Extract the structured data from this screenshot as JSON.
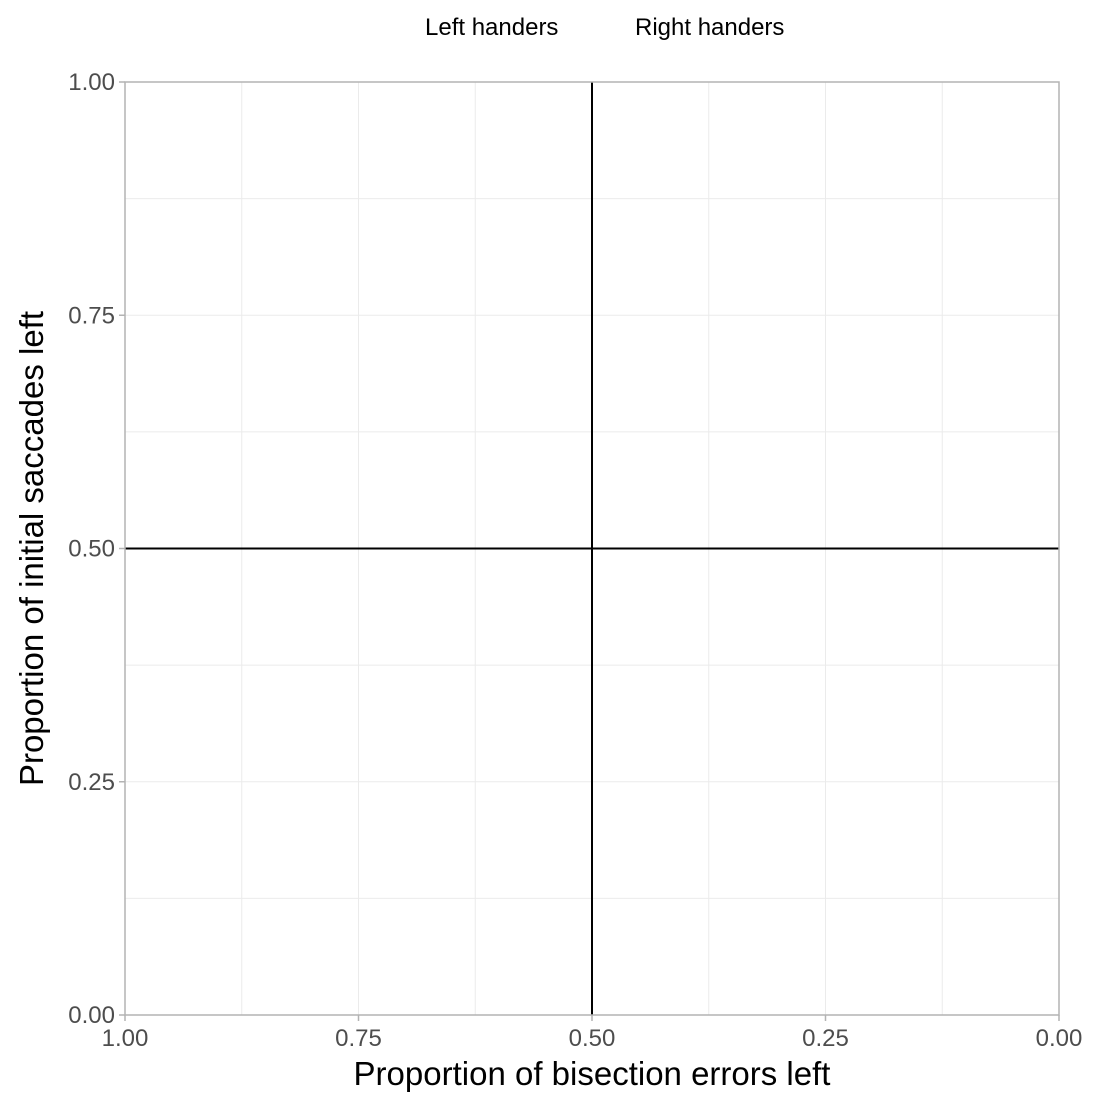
{
  "chart_data": {
    "type": "scatter",
    "title": "",
    "xlabel": "Proportion of bisection errors left",
    "ylabel": "Proportion of initial saccades left",
    "xlim": [
      1.0,
      0.0
    ],
    "x_reversed": true,
    "ylim": [
      0.0,
      1.0
    ],
    "x_tick_values": [
      1.0,
      0.75,
      0.5,
      0.25,
      0.0
    ],
    "x_tick_labels": [
      "1.00",
      "0.75",
      "0.50",
      "0.25",
      "0.00"
    ],
    "y_tick_values": [
      0.0,
      0.25,
      0.5,
      0.75,
      1.0
    ],
    "y_tick_labels": [
      "0.00",
      "0.25",
      "0.50",
      "0.75",
      "1.00"
    ],
    "minor_grid_step": 0.125,
    "grid": true,
    "reference_lines": {
      "vertical_x": 0.5,
      "horizontal_y": 0.5
    },
    "legend": {
      "placement": "top",
      "entries": [
        "Left handers",
        "Right handers"
      ]
    },
    "series": [
      {
        "name": "Left handers",
        "points": []
      },
      {
        "name": "Right handers",
        "points": []
      }
    ]
  },
  "colors": {
    "grid": "#ebebeb",
    "panel_border": "#b3b3b3",
    "reference_line": "#000000",
    "tick_text": "#4d4d4d",
    "title_text": "#000000"
  }
}
